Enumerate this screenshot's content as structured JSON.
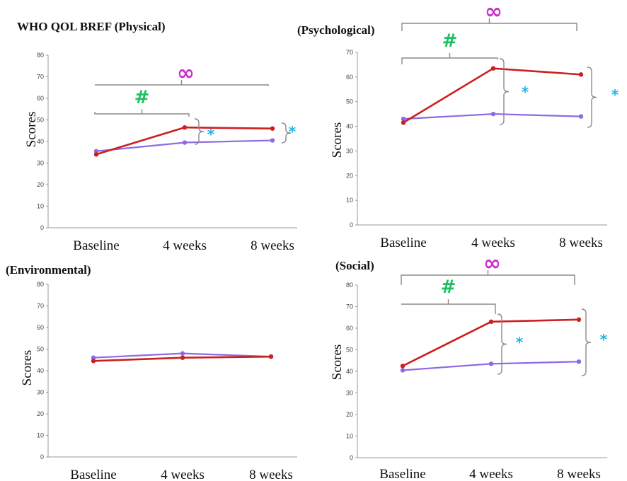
{
  "figure_title": "WHO QOL BREF",
  "colors": {
    "series_red": "#cc1f1f",
    "series_purple": "#8d6ae3",
    "bracket": "#8a8a8a",
    "hash": "#1fbf63",
    "infinity": "#cc2fcf",
    "star": "#1fb6e6"
  },
  "chart_data": [
    {
      "type": "line",
      "title": "WHO QOL BREF (Physical)",
      "ylabel": "Scores",
      "xlabel": "",
      "ylim": [
        0,
        80
      ],
      "yticks": [
        "0",
        "10",
        "20",
        "30",
        "40",
        "50",
        "60",
        "70",
        "80"
      ],
      "categories": [
        "Baseline",
        "4 weeks",
        "8 weeks"
      ],
      "series": [
        {
          "name": "red",
          "values": [
            34,
            46.5,
            46
          ]
        },
        {
          "name": "purple",
          "values": [
            35.5,
            39.5,
            40.5
          ]
        }
      ],
      "annotations": {
        "hash": "#",
        "infinity": "∞",
        "star_4w": "*",
        "star_8w": "*"
      }
    },
    {
      "type": "line",
      "title": "(Psychological)",
      "ylabel": "Scores",
      "xlabel": "",
      "ylim": [
        0,
        70
      ],
      "yticks": [
        "0",
        "10",
        "20",
        "30",
        "40",
        "50",
        "60",
        "70"
      ],
      "categories": [
        "Baseline",
        "4 weeks",
        "8 weeks"
      ],
      "series": [
        {
          "name": "red",
          "values": [
            41.5,
            63.5,
            61
          ]
        },
        {
          "name": "purple",
          "values": [
            43,
            45,
            44
          ]
        }
      ],
      "annotations": {
        "hash": "#",
        "infinity": "∞",
        "star_4w": "*",
        "star_8w": "*"
      }
    },
    {
      "type": "line",
      "title": "(Environmental)",
      "ylabel": "Scores",
      "xlabel": "",
      "ylim": [
        0,
        80
      ],
      "yticks": [
        "0",
        "10",
        "20",
        "30",
        "40",
        "50",
        "60",
        "70",
        "80"
      ],
      "categories": [
        "Baseline",
        "4 weeks",
        "8 weeks"
      ],
      "series": [
        {
          "name": "red",
          "values": [
            44.5,
            46,
            46.5
          ]
        },
        {
          "name": "purple",
          "values": [
            46,
            48,
            46.5
          ]
        }
      ]
    },
    {
      "type": "line",
      "title": "(Social)",
      "ylabel": "Scores",
      "xlabel": "",
      "ylim": [
        0,
        80
      ],
      "yticks": [
        "0",
        "10",
        "20",
        "30",
        "40",
        "50",
        "60",
        "70",
        "80"
      ],
      "categories": [
        "Baseline",
        "4 weeks",
        "8 weeks"
      ],
      "series": [
        {
          "name": "red",
          "values": [
            42.5,
            63,
            64
          ]
        },
        {
          "name": "purple",
          "values": [
            40.5,
            43.5,
            44.5
          ]
        }
      ],
      "annotations": {
        "hash": "#",
        "infinity": "∞",
        "star_4w": "*",
        "star_8w": "*"
      }
    }
  ]
}
